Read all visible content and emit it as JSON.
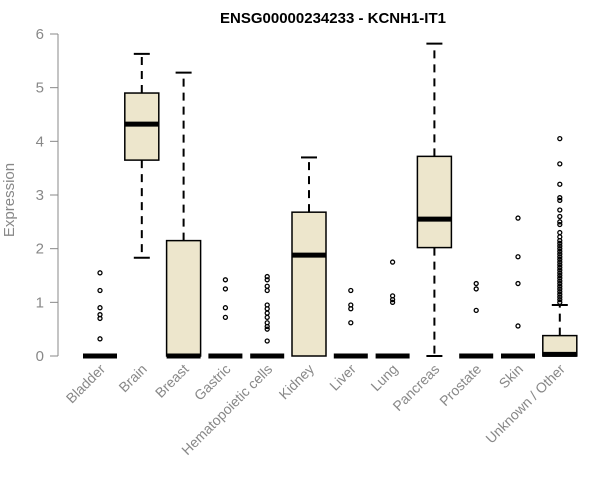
{
  "chart_data": {
    "type": "boxplot",
    "title": "ENSG00000234233 - KCNH1-IT1",
    "xlabel": "",
    "ylabel": "Expression",
    "ylim": [
      0,
      6
    ],
    "yticks": [
      0,
      1,
      2,
      3,
      4,
      5,
      6
    ],
    "grid": false,
    "box_color": "#ede6cc",
    "categories": [
      "Bladder",
      "Brain",
      "Breast",
      "Gastric",
      "Hematopoietic cells",
      "Kidney",
      "Liver",
      "Lung",
      "Pancreas",
      "Prostate",
      "Skin",
      "Unknown / Other"
    ],
    "boxes": [
      {
        "q1": 0,
        "median": 0,
        "q3": 0,
        "whisker_low": 0,
        "whisker_high": 0,
        "outliers": [
          1.55,
          1.22,
          0.9,
          0.77,
          0.7,
          0.32
        ]
      },
      {
        "q1": 3.65,
        "median": 4.32,
        "q3": 4.9,
        "whisker_low": 1.83,
        "whisker_high": 5.63,
        "outliers": []
      },
      {
        "q1": 0,
        "median": 0,
        "q3": 2.15,
        "whisker_low": 0,
        "whisker_high": 5.28,
        "outliers": []
      },
      {
        "q1": 0,
        "median": 0,
        "q3": 0,
        "whisker_low": 0,
        "whisker_high": 0,
        "outliers": [
          1.42,
          1.25,
          0.9,
          0.72
        ]
      },
      {
        "q1": 0,
        "median": 0,
        "q3": 0,
        "whisker_low": 0,
        "whisker_high": 0,
        "outliers": [
          1.48,
          1.42,
          1.3,
          1.22,
          0.95,
          0.88,
          0.8,
          0.72,
          0.62,
          0.55,
          0.5,
          0.28
        ]
      },
      {
        "q1": 0,
        "median": 1.88,
        "q3": 2.68,
        "whisker_low": 0,
        "whisker_high": 3.7,
        "outliers": []
      },
      {
        "q1": 0,
        "median": 0,
        "q3": 0,
        "whisker_low": 0,
        "whisker_high": 0,
        "outliers": [
          1.22,
          0.95,
          0.88,
          0.62
        ]
      },
      {
        "q1": 0,
        "median": 0,
        "q3": 0,
        "whisker_low": 0,
        "whisker_high": 0,
        "outliers": [
          1.75,
          1.12,
          1.05,
          1.0
        ]
      },
      {
        "q1": 2.02,
        "median": 2.55,
        "q3": 3.72,
        "whisker_low": 0,
        "whisker_high": 5.82,
        "outliers": []
      },
      {
        "q1": 0,
        "median": 0,
        "q3": 0,
        "whisker_low": 0,
        "whisker_high": 0,
        "outliers": [
          1.35,
          1.25,
          0.85
        ]
      },
      {
        "q1": 0,
        "median": 0,
        "q3": 0,
        "whisker_low": 0,
        "whisker_high": 0,
        "outliers": [
          2.57,
          1.85,
          1.35,
          0.56
        ]
      },
      {
        "q1": 0,
        "median": 0.03,
        "q3": 0.38,
        "whisker_low": 0,
        "whisker_high": 0.95,
        "outliers": [
          4.05,
          3.58,
          3.2,
          2.95,
          2.9,
          2.72,
          2.6,
          2.5,
          2.45,
          2.3,
          2.22,
          2.15,
          2.1,
          2.05,
          2.0,
          1.95,
          1.9,
          1.85,
          1.8,
          1.75,
          1.7,
          1.65,
          1.6,
          1.55,
          1.5,
          1.45,
          1.4,
          1.35,
          1.3,
          1.25,
          1.2,
          1.15,
          1.1,
          1.05,
          1.0
        ]
      }
    ]
  }
}
